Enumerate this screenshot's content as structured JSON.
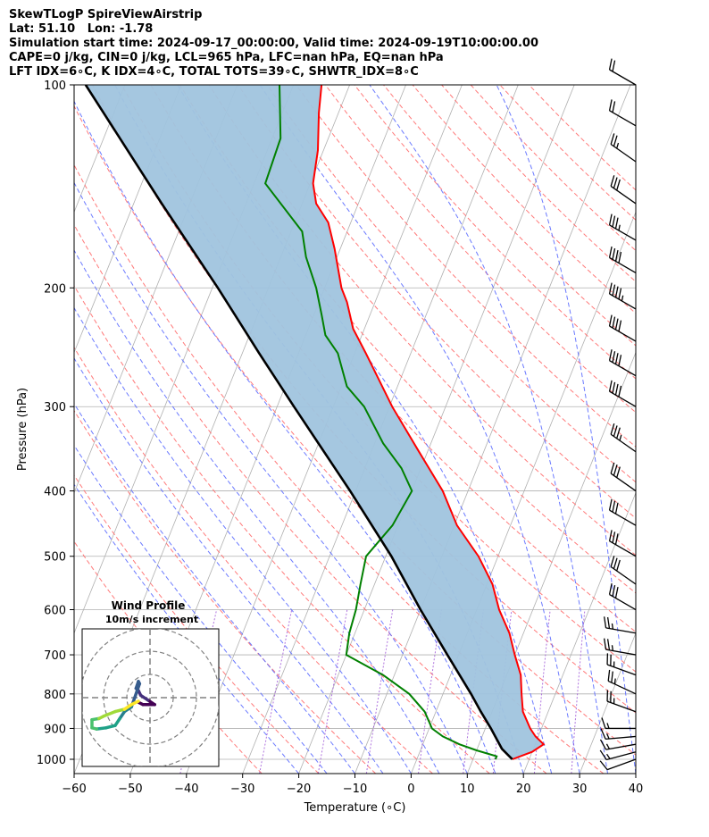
{
  "header": {
    "line1": "SkewTLogP SpireViewAirstrip",
    "line2": "Lat: 51.10   Lon: -1.78",
    "line3": "Simulation start time: 2024-09-17_00:00:00, Valid time: 2024-09-19T10:00:00.00",
    "line4": "CAPE=0 j/kg, CIN=0 j/kg, LCL=965 hPa, LFC=nan hPa, EQ=nan hPa",
    "line5": "LFT IDX=6∘C, K IDX=4∘C, TOTAL TOTS=39∘C, SHWTR_IDX=8∘C"
  },
  "chart_data": [
    {
      "type": "line",
      "subtype": "skew-t log-p",
      "xlabel": "Temperature (∘C)",
      "ylabel": "Pressure (hPa)",
      "xlim": [
        -60,
        40
      ],
      "ylim": [
        1050,
        100
      ],
      "y_scale": "log",
      "grid": true,
      "x_ticks": [
        -60,
        -50,
        -40,
        -30,
        -20,
        -10,
        0,
        10,
        20,
        30,
        40
      ],
      "x_tick_labels": [
        "−60",
        "−50",
        "−40",
        "−30",
        "−20",
        "−10",
        "0",
        "10",
        "20",
        "30",
        "40"
      ],
      "y_ticks": [
        100,
        200,
        300,
        400,
        500,
        600,
        700,
        800,
        900,
        1000
      ],
      "y_tick_labels": [
        "100",
        "200",
        "300",
        "400",
        "500",
        "600",
        "700",
        "800",
        "900",
        "1000"
      ],
      "colors": {
        "temperature": "#ff0000",
        "dewpoint": "#008000",
        "parcel": "#000000",
        "cape_fill": "#a0c4de",
        "dry_adiabats": "#ff6b6b",
        "moist_adiabats": "#5b6cff",
        "mixing_ratio": "#9a4fd6",
        "isotherms": "#b0b0b0"
      },
      "series": [
        {
          "role": "temperature",
          "points": [
            {
              "p": 1000,
              "t": 17.0
            },
            {
              "p": 975,
              "t": 20.0
            },
            {
              "p": 950,
              "t": 21.5
            },
            {
              "p": 925,
              "t": 19.5
            },
            {
              "p": 900,
              "t": 18.0
            },
            {
              "p": 850,
              "t": 15.5
            },
            {
              "p": 800,
              "t": 14.0
            },
            {
              "p": 750,
              "t": 12.5
            },
            {
              "p": 700,
              "t": 10.0
            },
            {
              "p": 650,
              "t": 7.5
            },
            {
              "p": 600,
              "t": 4.0
            },
            {
              "p": 550,
              "t": 1.0
            },
            {
              "p": 500,
              "t": -3.5
            },
            {
              "p": 450,
              "t": -9.5
            },
            {
              "p": 400,
              "t": -14.5
            },
            {
              "p": 350,
              "t": -21.5
            },
            {
              "p": 300,
              "t": -29.5
            },
            {
              "p": 250,
              "t": -38.0
            },
            {
              "p": 230,
              "t": -42.0
            },
            {
              "p": 210,
              "t": -45.0
            },
            {
              "p": 200,
              "t": -47.0
            },
            {
              "p": 175,
              "t": -51.0
            },
            {
              "p": 160,
              "t": -54.0
            },
            {
              "p": 150,
              "t": -57.5
            },
            {
              "p": 140,
              "t": -59.5
            },
            {
              "p": 125,
              "t": -61.0
            },
            {
              "p": 110,
              "t": -63.5
            },
            {
              "p": 100,
              "t": -65.0
            }
          ]
        },
        {
          "role": "dewpoint",
          "points": [
            {
              "p": 1000,
              "t": 14.0
            },
            {
              "p": 990,
              "t": 14.0
            },
            {
              "p": 970,
              "t": 10.0
            },
            {
              "p": 950,
              "t": 6.5
            },
            {
              "p": 925,
              "t": 3.0
            },
            {
              "p": 900,
              "t": 0.5
            },
            {
              "p": 850,
              "t": -2.0
            },
            {
              "p": 800,
              "t": -6.0
            },
            {
              "p": 750,
              "t": -12.0
            },
            {
              "p": 700,
              "t": -20.0
            },
            {
              "p": 650,
              "t": -21.0
            },
            {
              "p": 600,
              "t": -21.5
            },
            {
              "p": 550,
              "t": -22.5
            },
            {
              "p": 500,
              "t": -23.5
            },
            {
              "p": 450,
              "t": -21.0
            },
            {
              "p": 400,
              "t": -20.0
            },
            {
              "p": 370,
              "t": -23.5
            },
            {
              "p": 340,
              "t": -28.5
            },
            {
              "p": 300,
              "t": -34.5
            },
            {
              "p": 280,
              "t": -39.0
            },
            {
              "p": 250,
              "t": -43.0
            },
            {
              "p": 235,
              "t": -46.5
            },
            {
              "p": 220,
              "t": -48.5
            },
            {
              "p": 200,
              "t": -51.5
            },
            {
              "p": 180,
              "t": -55.5
            },
            {
              "p": 165,
              "t": -58.0
            },
            {
              "p": 140,
              "t": -68.0
            },
            {
              "p": 120,
              "t": -68.5
            },
            {
              "p": 100,
              "t": -72.5
            }
          ]
        },
        {
          "role": "parcel",
          "points": [
            {
              "p": 1000,
              "t": 17.0
            },
            {
              "p": 965,
              "t": 14.4
            },
            {
              "p": 900,
              "t": 11.0
            },
            {
              "p": 850,
              "t": 8.0
            },
            {
              "p": 800,
              "t": 5.0
            },
            {
              "p": 700,
              "t": -2.0
            },
            {
              "p": 600,
              "t": -10.0
            },
            {
              "p": 500,
              "t": -19.0
            },
            {
              "p": 400,
              "t": -31.0
            },
            {
              "p": 300,
              "t": -47.0
            },
            {
              "p": 250,
              "t": -57.0
            },
            {
              "p": 200,
              "t": -69.0
            },
            {
              "p": 150,
              "t": -85.0
            },
            {
              "p": 100,
              "t": -107.0
            }
          ]
        }
      ],
      "wind_barbs": [
        {
          "p": 1000,
          "dir": 250,
          "speed": 10
        },
        {
          "p": 975,
          "dir": 255,
          "speed": 15
        },
        {
          "p": 950,
          "dir": 260,
          "speed": 15
        },
        {
          "p": 925,
          "dir": 265,
          "speed": 15
        },
        {
          "p": 900,
          "dir": 270,
          "speed": 15
        },
        {
          "p": 850,
          "dir": 290,
          "speed": 25
        },
        {
          "p": 800,
          "dir": 295,
          "speed": 25
        },
        {
          "p": 750,
          "dir": 290,
          "speed": 25
        },
        {
          "p": 700,
          "dir": 280,
          "speed": 25
        },
        {
          "p": 650,
          "dir": 280,
          "speed": 25
        },
        {
          "p": 600,
          "dir": 300,
          "speed": 30
        },
        {
          "p": 550,
          "dir": 305,
          "speed": 30
        },
        {
          "p": 500,
          "dir": 300,
          "speed": 30
        },
        {
          "p": 450,
          "dir": 300,
          "speed": 30
        },
        {
          "p": 400,
          "dir": 305,
          "speed": 30
        },
        {
          "p": 350,
          "dir": 305,
          "speed": 35
        },
        {
          "p": 300,
          "dir": 300,
          "speed": 40
        },
        {
          "p": 270,
          "dir": 300,
          "speed": 40
        },
        {
          "p": 240,
          "dir": 300,
          "speed": 40
        },
        {
          "p": 215,
          "dir": 300,
          "speed": 45
        },
        {
          "p": 190,
          "dir": 300,
          "speed": 40
        },
        {
          "p": 170,
          "dir": 300,
          "speed": 35
        },
        {
          "p": 150,
          "dir": 305,
          "speed": 30
        },
        {
          "p": 130,
          "dir": 305,
          "speed": 25
        },
        {
          "p": 115,
          "dir": 300,
          "speed": 20
        },
        {
          "p": 100,
          "dir": 300,
          "speed": 20
        }
      ]
    },
    {
      "type": "scatter",
      "subtype": "hodograph",
      "title": "Wind Profile",
      "subtitle": "10m/s increment",
      "rings_ms": [
        10,
        20,
        30
      ],
      "colormap": "viridis",
      "points": [
        {
          "u": -5.0,
          "v": -2.0
        },
        {
          "u": -3.0,
          "v": -3.0
        },
        {
          "u": 2.0,
          "v": -3.0
        },
        {
          "u": -1.0,
          "v": -1.0
        },
        {
          "u": -4.0,
          "v": 1.0
        },
        {
          "u": -5.0,
          "v": 3.0
        },
        {
          "u": -6.0,
          "v": 4.0
        },
        {
          "u": -5.0,
          "v": 7.0
        },
        {
          "u": -4.5,
          "v": 6.0
        },
        {
          "u": -8.0,
          "v": -4.0
        },
        {
          "u": -11.0,
          "v": -6.0
        },
        {
          "u": -13.0,
          "v": -9.0
        },
        {
          "u": -15.0,
          "v": -12.0
        },
        {
          "u": -19.0,
          "v": -13.0
        },
        {
          "u": -23.0,
          "v": -13.5
        },
        {
          "u": -25.0,
          "v": -13.0
        },
        {
          "u": -25.0,
          "v": -9.5
        },
        {
          "u": -22.0,
          "v": -9.0
        },
        {
          "u": -20.0,
          "v": -8.0
        },
        {
          "u": -15.0,
          "v": -6.0
        },
        {
          "u": -11.0,
          "v": -5.0
        },
        {
          "u": -8.0,
          "v": -3.0
        },
        {
          "u": -5.0,
          "v": -1.5
        }
      ]
    }
  ]
}
